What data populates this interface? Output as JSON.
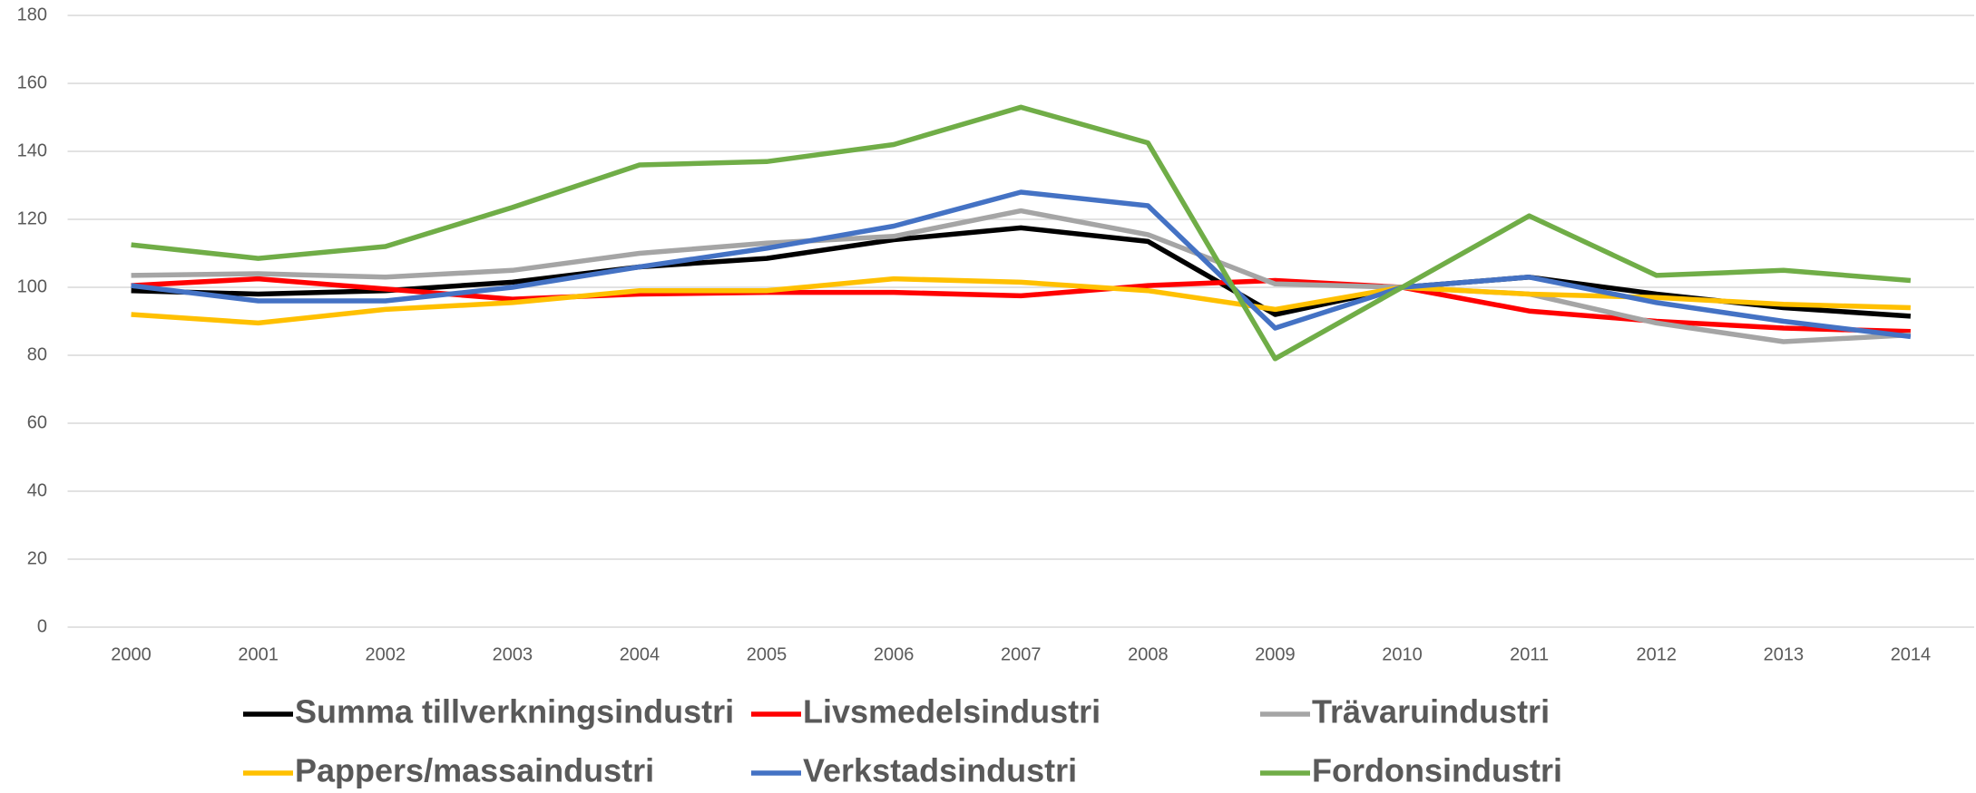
{
  "chart_data": {
    "type": "line",
    "categories": [
      "2000",
      "2001",
      "2002",
      "2003",
      "2004",
      "2005",
      "2006",
      "2007",
      "2008",
      "2009",
      "2010",
      "2011",
      "2012",
      "2013",
      "2014"
    ],
    "ylim": [
      0,
      180
    ],
    "yticks": [
      0,
      20,
      40,
      60,
      80,
      100,
      120,
      140,
      160,
      180
    ],
    "grid": true,
    "series": [
      {
        "name": "Summa tillverkningsindustri",
        "color": "#000000",
        "values": [
          99,
          98,
          99,
          101.5,
          106,
          108.5,
          114,
          117.5,
          113.5,
          92,
          100,
          103,
          98,
          94,
          91.5
        ]
      },
      {
        "name": "Livsmedelsindustri",
        "color": "#ff0000",
        "values": [
          100.5,
          102.5,
          99.5,
          96.5,
          98,
          98.5,
          98.5,
          97.5,
          100.5,
          102,
          100,
          93,
          90,
          88,
          87
        ]
      },
      {
        "name": "Trävaruindustri",
        "color": "#a5a5a5",
        "values": [
          103.5,
          104,
          103,
          105,
          110,
          113,
          115,
          122.5,
          115.5,
          101,
          100,
          98,
          89.5,
          84,
          86
        ]
      },
      {
        "name": "Pappers/massaindustri",
        "color": "#ffc000",
        "values": [
          92,
          89.5,
          93.5,
          95.5,
          99,
          99,
          102.5,
          101.5,
          99,
          93.5,
          100,
          98,
          97,
          95,
          94
        ]
      },
      {
        "name": "Verkstadsindustri",
        "color": "#4472c4",
        "values": [
          100.5,
          96,
          96,
          100,
          106,
          111.5,
          118,
          128,
          124,
          88,
          100,
          103,
          95.5,
          90,
          85.5
        ]
      },
      {
        "name": "Fordonsindustri",
        "color": "#70ad47",
        "values": [
          112.5,
          108.5,
          112,
          123.5,
          136,
          137,
          142,
          153,
          142.5,
          79,
          100,
          121,
          103.5,
          105,
          102
        ]
      }
    ]
  }
}
